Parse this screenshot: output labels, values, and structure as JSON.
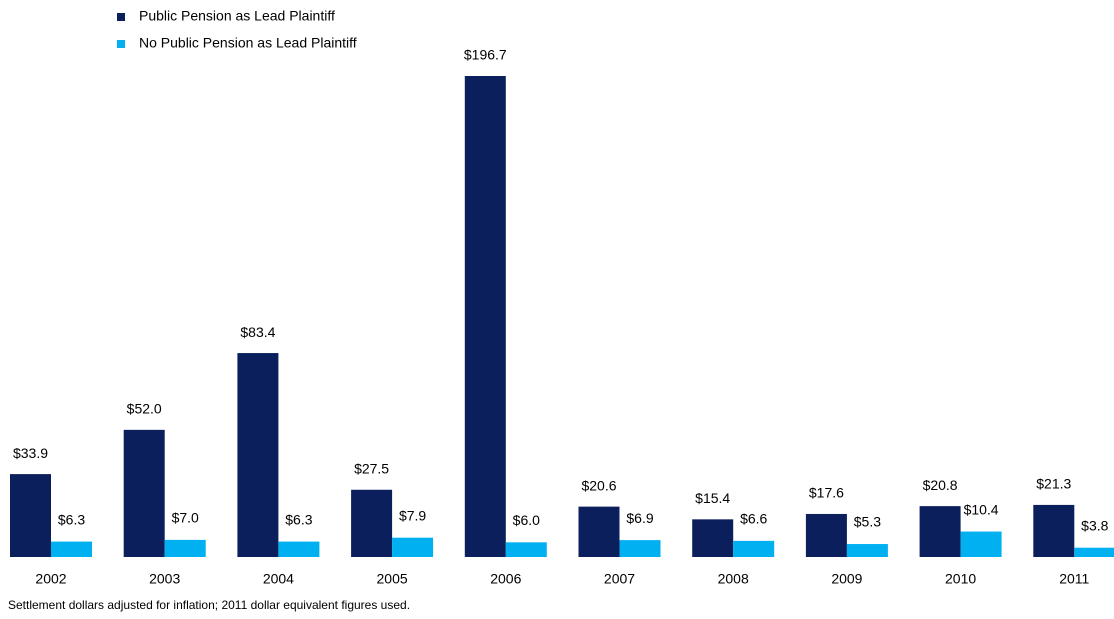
{
  "chart_data": {
    "type": "bar",
    "categories": [
      "2002",
      "2003",
      "2004",
      "2005",
      "2006",
      "2007",
      "2008",
      "2009",
      "2010",
      "2011"
    ],
    "series": [
      {
        "name": "Public Pension as Lead Plaintiff",
        "color": "#0b1f5c",
        "values": [
          33.9,
          52.0,
          83.4,
          27.5,
          196.7,
          20.6,
          15.4,
          17.6,
          20.8,
          21.3
        ],
        "value_labels": [
          "$33.9",
          "$52.0",
          "$83.4",
          "$27.5",
          "$196.7",
          "$20.6",
          "$15.4",
          "$17.6",
          "$20.8",
          "$21.3"
        ]
      },
      {
        "name": "No Public Pension as Lead Plaintiff",
        "color": "#00b0f0",
        "values": [
          6.3,
          7.0,
          6.3,
          7.9,
          6.0,
          6.9,
          6.6,
          5.3,
          10.4,
          3.8
        ],
        "value_labels": [
          "$6.3",
          "$7.0",
          "$6.3",
          "$7.9",
          "$6.0",
          "$6.9",
          "$6.6",
          "$5.3",
          "$10.4",
          "$3.8"
        ]
      }
    ],
    "note": "Settlement dollars adjusted for inflation; 2011 dollar equivalent figures used."
  }
}
